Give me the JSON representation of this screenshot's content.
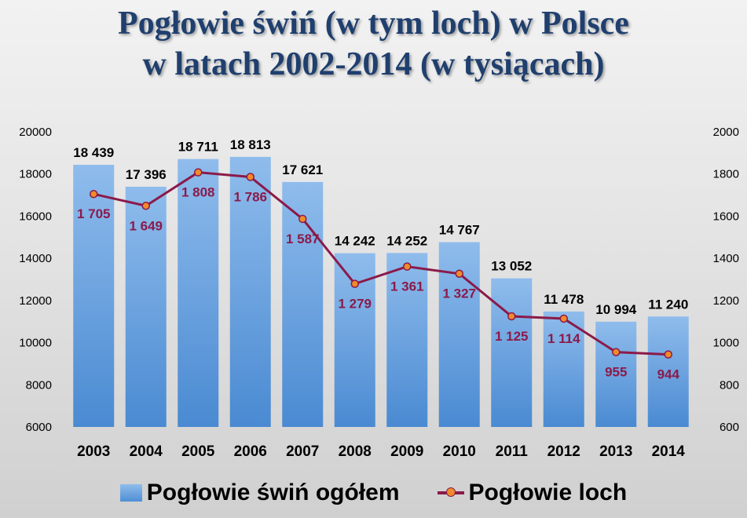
{
  "title": {
    "line1": "Pogłowie świń (w tym loch) w Polsce",
    "line2": "w latach 2002-2014 (w tysiącach)"
  },
  "colors": {
    "bar": "#5b9bd5",
    "line": "#8b1a4a",
    "marker": "#f08a2a",
    "title": "#1f3f6e"
  },
  "chart_data": {
    "type": "bar",
    "categories": [
      "2003",
      "2004",
      "2005",
      "2006",
      "2007",
      "2008",
      "2009",
      "2010",
      "2011",
      "2012",
      "2013",
      "2014"
    ],
    "series": [
      {
        "name": "Pogłowie świń ogółem",
        "type": "bar",
        "axis": "left",
        "values": [
          18439,
          17396,
          18711,
          18813,
          17621,
          14242,
          14252,
          14767,
          13052,
          11478,
          10994,
          11240
        ],
        "labels": [
          "18 439",
          "17 396",
          "18 711",
          "18 813",
          "17 621",
          "14 242",
          "14 252",
          "14 767",
          "13 052",
          "11 478",
          "10 994",
          "11 240"
        ]
      },
      {
        "name": "Pogłowie loch",
        "type": "line",
        "axis": "right",
        "values": [
          1705,
          1649,
          1808,
          1786,
          1587,
          1279,
          1361,
          1327,
          1125,
          1114,
          955,
          944
        ],
        "labels": [
          "1 705",
          "1 649",
          "1 808",
          "1 786",
          "1 587",
          "1 279",
          "1 361",
          "1 327",
          "1 125",
          "1 114",
          "955",
          "944"
        ]
      }
    ],
    "y_left": {
      "range": [
        6000,
        20000
      ],
      "ticks": [
        "6000",
        "8000",
        "10000",
        "12000",
        "14000",
        "16000",
        "18000",
        "20000"
      ]
    },
    "y_right": {
      "range": [
        600,
        2000
      ],
      "ticks": [
        "600",
        "800",
        "1000",
        "1200",
        "1400",
        "1600",
        "1800",
        "2000"
      ]
    },
    "grid": false,
    "legend_position": "bottom"
  }
}
